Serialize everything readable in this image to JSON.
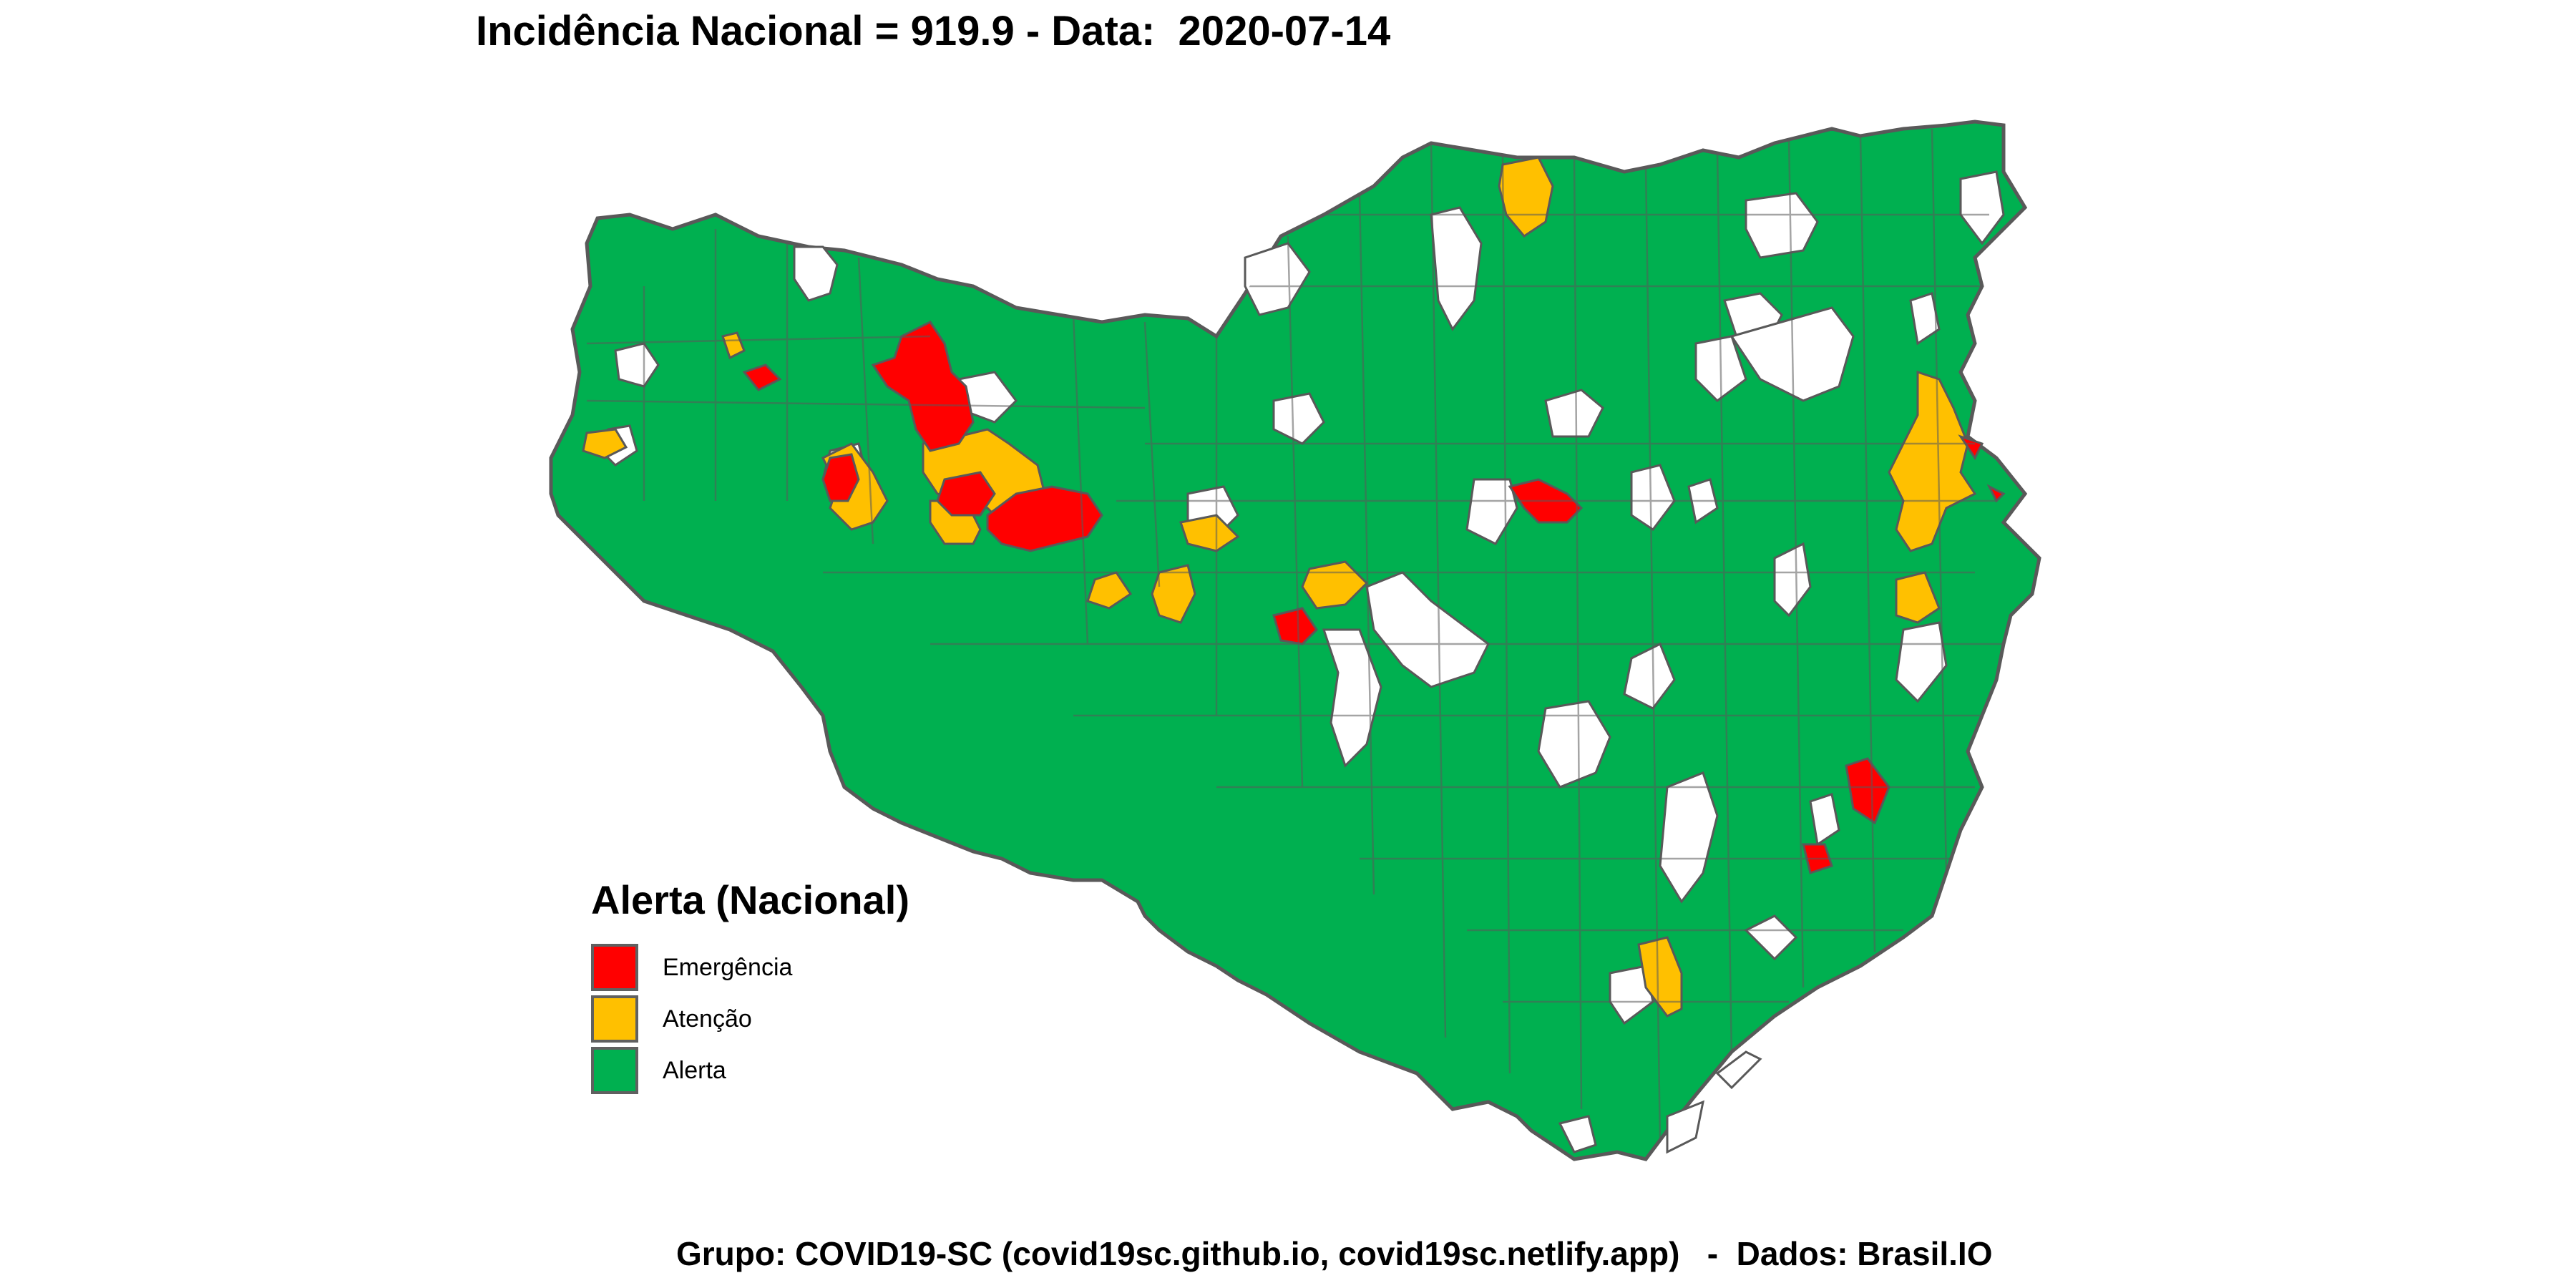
{
  "title": "Incidência Nacional = 919.9 - Data:  2020-07-14",
  "caption": "Grupo: COVID19-SC (covid19sc.github.io, covid19sc.netlify.app)   -  Dados: Brasil.IO",
  "colors": {
    "Emergência": "#ff0000",
    "Atenção": "#ffc000",
    "Alerta": "#00b050",
    "sem_dado": "#ffffff",
    "border": "#595959"
  },
  "legend": {
    "title": "Alerta (Nacional)",
    "items": [
      {
        "label": "Emergência",
        "color": "#ff0000"
      },
      {
        "label": "Atenção",
        "color": "#ffc000"
      },
      {
        "label": "Alerta",
        "color": "#00b050"
      }
    ]
  }
}
